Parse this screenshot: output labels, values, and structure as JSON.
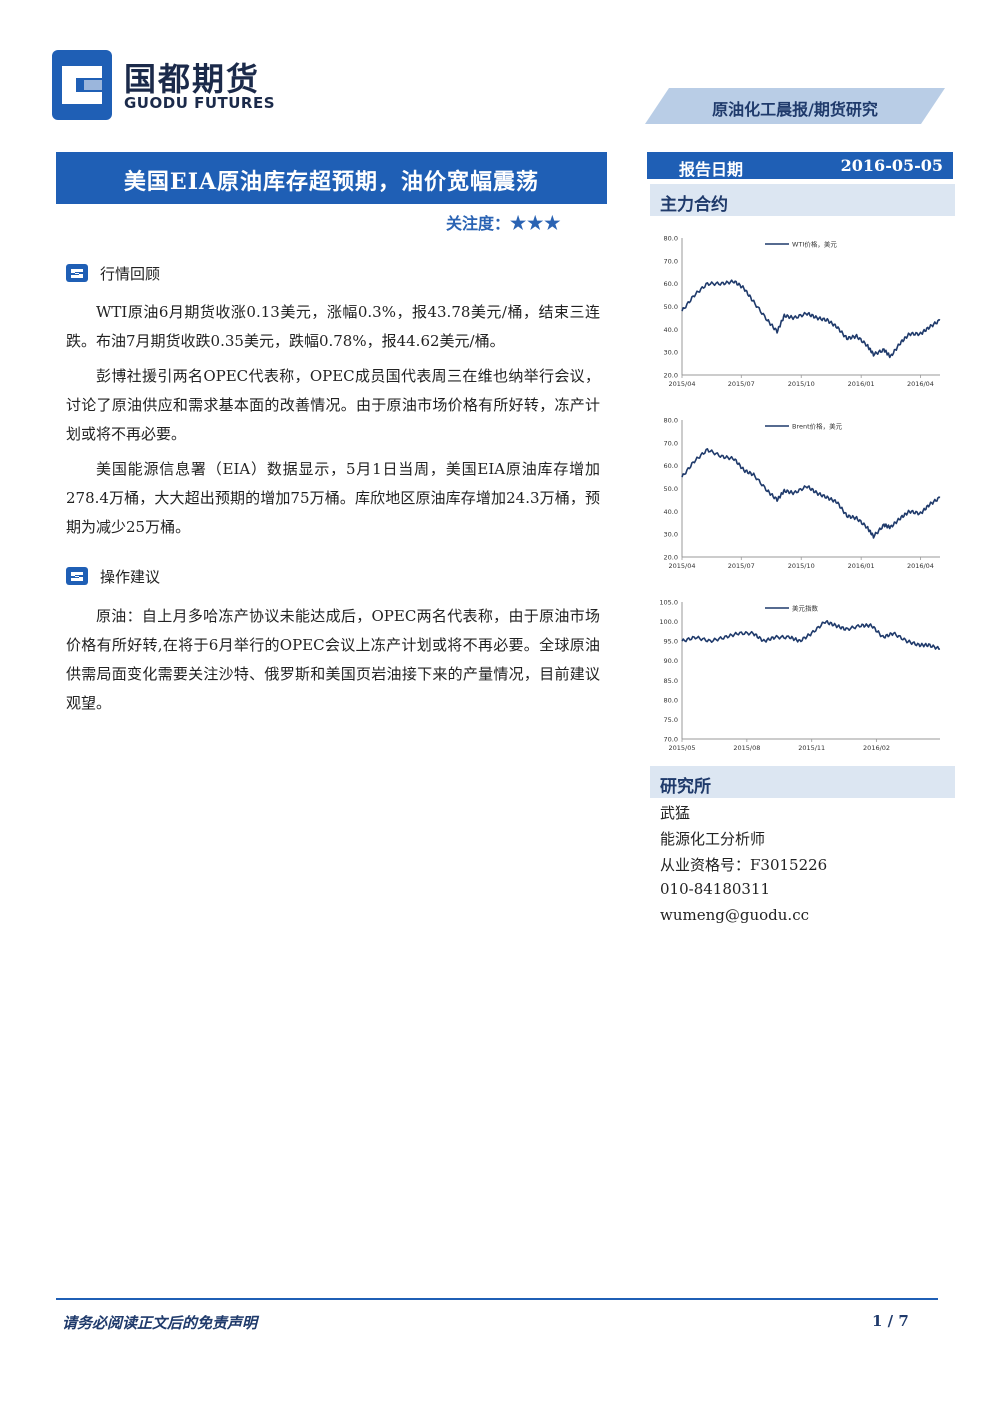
{
  "header": {
    "logo_cn": "国都期货",
    "logo_en": "GUODU FUTURES",
    "report_type": "原油化工晨报/期货研究"
  },
  "title": {
    "main": "美国EIA原油库存超预期，油价宽幅震荡",
    "attention_label": "关注度：",
    "attention_stars": "★★★"
  },
  "sections": [
    {
      "title": "行情回顾",
      "paragraphs": [
        "WTI原油6月期货收涨0.13美元，涨幅0.3%，报43.78美元/桶，结束三连跌。布油7月期货收跌0.35美元，跌幅0.78%，报44.62美元/桶。",
        "彭博社援引两名OPEC代表称，OPEC成员国代表周三在维也纳举行会议，讨论了原油供应和需求基本面的改善情况。由于原油市场价格有所好转，冻产计划或将不再必要。",
        "美国能源信息署（EIA）数据显示，5月1日当周，美国EIA原油库存增加278.4万桶，大大超出预期的增加75万桶。库欣地区原油库存增加24.3万桶，预期为减少25万桶。"
      ]
    },
    {
      "title": "操作建议",
      "paragraphs": [
        "原油：自上月多哈冻产协议未能达成后，OPEC两名代表称，由于原油市场价格有所好转,在将于6月举行的OPEC会议上冻产计划或将不再必要。全球原油供需局面变化需要关注沙特、俄罗斯和美国页岩油接下来的产量情况，目前建议观望。"
      ]
    }
  ],
  "sidebar": {
    "date_label": "报告日期",
    "date_value": "2016-05-05",
    "contracts_title": "主力合约",
    "research_title": "研究所",
    "analyst": {
      "name": "武猛",
      "role": "能源化工分析师",
      "license": "从业资格号：F3015226",
      "phone": "010-84180311",
      "email": "wumeng@guodu.cc"
    }
  },
  "chart_data": [
    {
      "type": "line",
      "title": "",
      "legend": "WTI价格，美元",
      "x_ticks": [
        "2015/04",
        "2015/07",
        "2015/10",
        "2016/01",
        "2016/04"
      ],
      "y_ticks": [
        "20.0",
        "30.0",
        "40.0",
        "50.0",
        "60.0",
        "70.0",
        "80.0"
      ],
      "ylim": [
        20,
        80
      ],
      "series": [
        {
          "name": "WTI价格，美元",
          "x": [
            "2015/04/01",
            "2015/04/20",
            "2015/05/10",
            "2015/06/01",
            "2015/06/20",
            "2015/07/05",
            "2015/07/20",
            "2015/08/10",
            "2015/08/25",
            "2015/09/05",
            "2015/09/20",
            "2015/10/10",
            "2015/10/25",
            "2015/11/10",
            "2015/11/25",
            "2015/12/10",
            "2015/12/25",
            "2016/01/10",
            "2016/01/20",
            "2016/02/05",
            "2016/02/15",
            "2016/03/01",
            "2016/03/15",
            "2016/04/01",
            "2016/04/15",
            "2016/05/01"
          ],
          "y": [
            48,
            55,
            60,
            60,
            61,
            58,
            52,
            44,
            39,
            46,
            45,
            47,
            45,
            44,
            41,
            36,
            37,
            33,
            29,
            31,
            28,
            34,
            38,
            38,
            41,
            44
          ]
        }
      ]
    },
    {
      "type": "line",
      "title": "",
      "legend": "Brent价格，美元",
      "x_ticks": [
        "2015/04",
        "2015/07",
        "2015/10",
        "2016/01",
        "2016/04"
      ],
      "y_ticks": [
        "20.0",
        "30.0",
        "40.0",
        "50.0",
        "60.0",
        "70.0",
        "80.0"
      ],
      "ylim": [
        20,
        80
      ],
      "series": [
        {
          "name": "Brent价格，美元",
          "x": [
            "2015/04/01",
            "2015/04/20",
            "2015/05/10",
            "2015/06/01",
            "2015/06/20",
            "2015/07/05",
            "2015/07/20",
            "2015/08/10",
            "2015/08/25",
            "2015/09/05",
            "2015/09/20",
            "2015/10/10",
            "2015/10/25",
            "2015/11/10",
            "2015/11/25",
            "2015/12/10",
            "2015/12/25",
            "2016/01/10",
            "2016/01/20",
            "2016/02/05",
            "2016/02/15",
            "2016/03/01",
            "2016/03/15",
            "2016/04/01",
            "2016/04/15",
            "2016/05/01"
          ],
          "y": [
            55,
            62,
            67,
            64,
            63,
            58,
            56,
            49,
            45,
            49,
            48,
            51,
            48,
            46,
            44,
            38,
            37,
            33,
            29,
            34,
            33,
            37,
            40,
            39,
            43,
            46
          ]
        }
      ]
    },
    {
      "type": "line",
      "title": "",
      "legend": "美元指数",
      "x_ticks": [
        "2015/05",
        "2015/08",
        "2015/11",
        "2016/02"
      ],
      "y_ticks": [
        "70.0",
        "75.0",
        "80.0",
        "85.0",
        "90.0",
        "95.0",
        "100.0",
        "105.0"
      ],
      "ylim": [
        70,
        105
      ],
      "series": [
        {
          "name": "美元指数",
          "x": [
            "2015/05/01",
            "2015/05/20",
            "2015/06/10",
            "2015/07/01",
            "2015/07/20",
            "2015/08/10",
            "2015/08/25",
            "2015/09/10",
            "2015/10/01",
            "2015/10/15",
            "2015/11/01",
            "2015/11/20",
            "2015/12/05",
            "2015/12/20",
            "2016/01/10",
            "2016/01/25",
            "2016/02/10",
            "2016/02/25",
            "2016/03/15",
            "2016/04/01",
            "2016/04/15",
            "2016/05/01"
          ],
          "y": [
            95,
            96,
            95,
            96,
            97,
            97,
            95,
            96,
            96,
            95,
            97,
            100,
            99,
            98,
            99,
            99,
            96,
            97,
            95,
            94,
            94,
            93
          ]
        }
      ]
    }
  ],
  "footer": {
    "disclaimer": "请务必阅读正文后的免责声明",
    "page": "1 / 7"
  }
}
